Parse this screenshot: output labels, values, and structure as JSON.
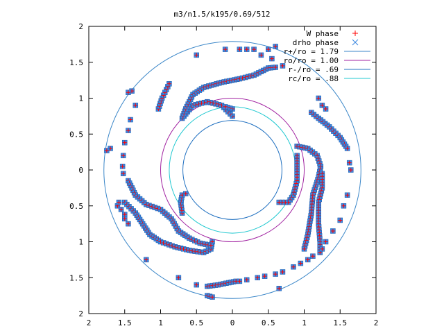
{
  "chart_data": {
    "type": "scatter",
    "title": "m3/n1.5/k195/0.69/512",
    "xlabel": "",
    "ylabel": "",
    "xlim": [
      -2,
      2
    ],
    "ylim": [
      -2,
      2
    ],
    "x_ticks": [
      "2",
      "1.5",
      "1",
      "0.5",
      "0",
      "0.5",
      "1",
      "1.5",
      "2"
    ],
    "y_ticks": [
      "2",
      "1.5",
      "1",
      "0.5",
      "0",
      "0.5",
      "1",
      "1.5",
      "2"
    ],
    "grid": false,
    "legend_position": "top-right",
    "series": [
      {
        "name": "W phase",
        "marker": "plus",
        "color": "#ff0000"
      },
      {
        "name": "drho phase",
        "marker": "cross",
        "color": "#0060ad"
      }
    ],
    "circles": [
      {
        "name": "r+/ro = 1.79",
        "radius": 1.79,
        "color": "#3a86c8"
      },
      {
        "name": "ro/ro = 1.00",
        "radius": 1.0,
        "color": "#a020a0"
      },
      {
        "name": "r-/ro = .69",
        "radius": 0.69,
        "color": "#2070c0"
      },
      {
        "name": "rc/ro = .88",
        "radius": 0.88,
        "color": "#20c8d0"
      }
    ],
    "arms": [
      {
        "points": [
          [
            0.0,
            0.75
          ],
          [
            -0.15,
            0.9
          ],
          [
            -0.35,
            0.95
          ],
          [
            -0.55,
            0.9
          ],
          [
            -0.7,
            0.72
          ],
          [
            -0.65,
            0.85
          ],
          [
            -0.55,
            1.05
          ],
          [
            -0.4,
            1.15
          ],
          [
            -0.15,
            1.22
          ],
          [
            0.1,
            1.27
          ],
          [
            0.3,
            1.32
          ],
          [
            0.5,
            1.42
          ],
          [
            0.6,
            1.43
          ]
        ]
      },
      {
        "points": [
          [
            -1.03,
            0.85
          ],
          [
            -0.98,
            1.0
          ],
          [
            -0.92,
            1.12
          ],
          [
            -0.88,
            1.2
          ]
        ]
      },
      {
        "points": [
          [
            0.0,
            0.85
          ],
          [
            -0.1,
            0.88
          ]
        ]
      },
      {
        "points": [
          [
            0.9,
            -0.15
          ],
          [
            0.85,
            -0.35
          ],
          [
            0.78,
            -0.45
          ],
          [
            0.65,
            -0.45
          ]
        ]
      },
      {
        "points": [
          [
            0.9,
            0.2
          ],
          [
            0.9,
            0.05
          ],
          [
            0.9,
            -0.1
          ]
        ]
      },
      {
        "points": [
          [
            0.9,
            0.33
          ],
          [
            1.05,
            0.3
          ],
          [
            1.18,
            0.2
          ],
          [
            1.23,
            0.05
          ],
          [
            1.2,
            -0.1
          ],
          [
            1.12,
            -0.35
          ],
          [
            1.1,
            -0.6
          ],
          [
            1.05,
            -0.9
          ],
          [
            1.0,
            -1.1
          ]
        ]
      },
      {
        "points": [
          [
            1.25,
            -0.05
          ],
          [
            1.25,
            -0.25
          ],
          [
            1.2,
            -0.45
          ],
          [
            1.2,
            -0.75
          ],
          [
            1.22,
            -1.0
          ],
          [
            1.22,
            -1.15
          ]
        ]
      },
      {
        "points": [
          [
            1.1,
            0.8
          ],
          [
            1.2,
            0.72
          ],
          [
            1.35,
            0.6
          ],
          [
            1.5,
            0.45
          ],
          [
            1.6,
            0.3
          ]
        ]
      },
      {
        "points": [
          [
            -1.5,
            -0.45
          ],
          [
            -1.35,
            -0.6
          ],
          [
            -1.25,
            -0.75
          ],
          [
            -1.15,
            -0.9
          ],
          [
            -1.0,
            -1.0
          ],
          [
            -0.8,
            -1.07
          ],
          [
            -0.6,
            -1.12
          ],
          [
            -0.4,
            -1.15
          ],
          [
            -0.3,
            -1.1
          ],
          [
            -0.28,
            -1.0
          ]
        ]
      },
      {
        "points": [
          [
            -1.45,
            -0.15
          ],
          [
            -1.35,
            -0.35
          ],
          [
            -1.2,
            -0.48
          ],
          [
            -1.0,
            -0.55
          ],
          [
            -0.85,
            -0.68
          ],
          [
            -0.75,
            -0.85
          ],
          [
            -0.6,
            -0.95
          ],
          [
            -0.45,
            -1.02
          ],
          [
            -0.3,
            -1.05
          ]
        ]
      },
      {
        "points": [
          [
            -0.7,
            -0.6
          ],
          [
            -0.72,
            -0.45
          ],
          [
            -0.7,
            -0.35
          ],
          [
            -0.65,
            -0.33
          ]
        ]
      },
      {
        "points": [
          [
            -0.35,
            -1.62
          ],
          [
            -0.2,
            -1.6
          ],
          [
            -0.05,
            -1.57
          ],
          [
            0.05,
            -1.55
          ]
        ]
      },
      {
        "points": [
          [
            -0.35,
            -1.75
          ],
          [
            -0.28,
            -1.77
          ]
        ]
      }
    ],
    "scatter_points": [
      [
        0.4,
        1.6
      ],
      [
        0.5,
        1.68
      ],
      [
        0.6,
        1.72
      ],
      [
        0.3,
        1.68
      ],
      [
        0.2,
        1.68
      ],
      [
        0.1,
        1.68
      ],
      [
        -0.1,
        1.68
      ],
      [
        -0.5,
        1.6
      ],
      [
        -1.4,
        1.1
      ],
      [
        -1.45,
        1.08
      ],
      [
        -1.35,
        0.9
      ],
      [
        -1.42,
        0.7
      ],
      [
        -1.45,
        0.55
      ],
      [
        -1.5,
        0.38
      ],
      [
        -1.52,
        0.2
      ],
      [
        -1.53,
        0.05
      ],
      [
        -1.52,
        -0.05
      ],
      [
        -1.6,
        -0.5
      ],
      [
        -1.58,
        -0.45
      ],
      [
        -1.55,
        -0.55
      ],
      [
        -1.5,
        -0.62
      ],
      [
        -1.5,
        -0.68
      ],
      [
        -1.45,
        -0.75
      ],
      [
        -1.2,
        -1.25
      ],
      [
        -0.75,
        -1.5
      ],
      [
        -0.5,
        -1.6
      ],
      [
        -1.7,
        0.3
      ],
      [
        -1.75,
        0.27
      ],
      [
        0.1,
        -1.55
      ],
      [
        0.2,
        -1.53
      ],
      [
        0.35,
        -1.5
      ],
      [
        0.45,
        -1.48
      ],
      [
        0.6,
        -1.45
      ],
      [
        0.7,
        -1.42
      ],
      [
        0.85,
        -1.35
      ],
      [
        0.95,
        -1.3
      ],
      [
        1.05,
        -1.25
      ],
      [
        1.12,
        -1.2
      ],
      [
        1.25,
        -1.1
      ],
      [
        1.3,
        -1.0
      ],
      [
        1.4,
        -0.85
      ],
      [
        1.5,
        -0.7
      ],
      [
        1.55,
        -0.5
      ],
      [
        1.6,
        -0.35
      ],
      [
        1.65,
        0.0
      ],
      [
        1.63,
        0.1
      ],
      [
        1.25,
        0.9
      ],
      [
        1.2,
        1.0
      ],
      [
        1.3,
        0.85
      ],
      [
        0.65,
        -1.65
      ],
      [
        0.55,
        1.55
      ],
      [
        0.7,
        1.45
      ]
    ]
  }
}
